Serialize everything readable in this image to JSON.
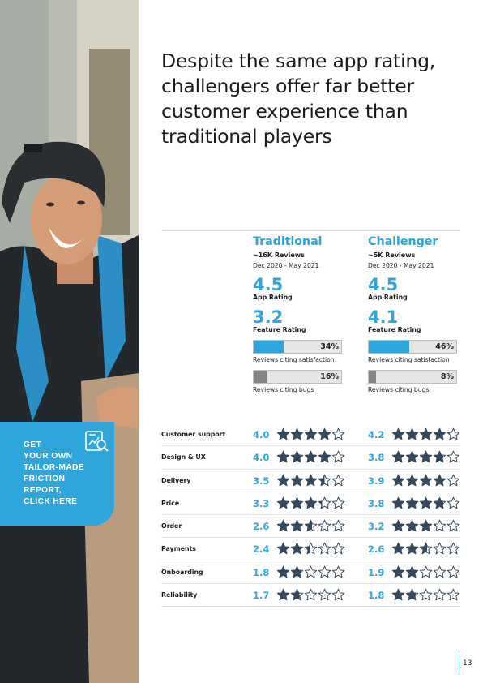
{
  "headline": "Despite the same app rating, challengers offer far better customer experience than traditional players",
  "cta": {
    "text": "GET\nYOUR OWN\nTAILOR-MADE\nFRICTION\nREPORT,\nCLICK HERE",
    "icon": "report-chart-icon"
  },
  "traditional": {
    "name": "Traditional",
    "reviews": "~16K Reviews",
    "period": "Dec 2020 - May 2021",
    "app_rating": "4.5",
    "app_rating_label": "App Rating",
    "feature_rating": "3.2",
    "feature_rating_label": "Feature Rating",
    "satisfaction": "34%",
    "satisfaction_fraction": 0.34,
    "satisfaction_label": "Reviews citing satisfaction",
    "bugs": "16%",
    "bugs_fraction": 0.16,
    "bugs_label": "Reviews citing bugs"
  },
  "challenger": {
    "name": "Challenger",
    "reviews": "~5K Reviews",
    "period": "Dec 2020 - May 2021",
    "app_rating": "4.5",
    "app_rating_label": "App Rating",
    "feature_rating": "4.1",
    "feature_rating_label": "Feature Rating",
    "satisfaction": "46%",
    "satisfaction_fraction": 0.46,
    "satisfaction_label": "Reviews citing satisfaction",
    "bugs": "8%",
    "bugs_fraction": 0.08,
    "bugs_label": "Reviews citing bugs"
  },
  "features": [
    {
      "label": "Customer support",
      "trad": "4.0",
      "chal": "4.2"
    },
    {
      "label": "Design & UX",
      "trad": "4.0",
      "chal": "3.8"
    },
    {
      "label": "Delivery",
      "trad": "3.5",
      "chal": "3.9"
    },
    {
      "label": "Price",
      "trad": "3.3",
      "chal": "3.8"
    },
    {
      "label": "Order",
      "trad": "2.6",
      "chal": "3.2"
    },
    {
      "label": "Payments",
      "trad": "2.4",
      "chal": "2.6"
    },
    {
      "label": "Onboarding",
      "trad": "1.8",
      "chal": "1.9"
    },
    {
      "label": "Reliability",
      "trad": "1.7",
      "chal": "1.8"
    }
  ],
  "page_number": "13",
  "colors": {
    "accent": "#2ea6dc",
    "star": "#34495e",
    "bug_bar": "#858585"
  }
}
